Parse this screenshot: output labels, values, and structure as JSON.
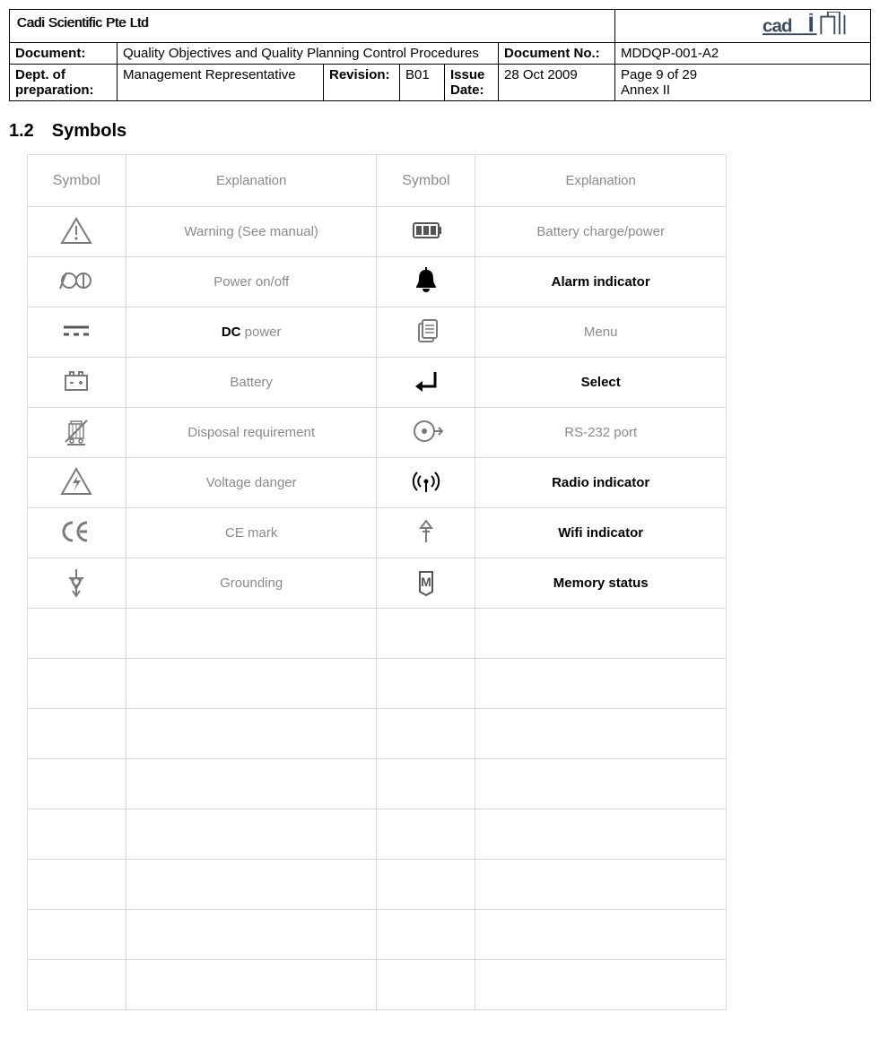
{
  "header": {
    "company": "Cadi Scientific Pte Ltd",
    "doc_lbl": "Document:",
    "doc_val": "Quality Objectives and Quality Planning Control Procedures",
    "docno_lbl": "Document No.:",
    "docno_val": "MDDQP-001-A2",
    "dept_lbl": "Dept. of preparation:",
    "dept_val": "Management Representative",
    "rev_lbl": "Revision:",
    "rev_val": "B01",
    "issue_lbl": "Issue Date:",
    "issue_val": "28 Oct 2009",
    "page_line1": "Page 9 of 29",
    "page_line2": "Annex II"
  },
  "section_title": "1.2 Symbols",
  "symtable": {
    "header": {
      "sym": "Symbol",
      "exp": "Explanation"
    },
    "rows": [
      {
        "l_icon": "warning",
        "l_text": "Warning (See manual)",
        "l_bold": false,
        "r_icon": "battery3",
        "r_text": "Battery charge/power",
        "r_bold": false
      },
      {
        "l_icon": "poweroo",
        "l_text": "Power on/off",
        "l_bold": false,
        "r_icon": "bell",
        "r_text": "Alarm indicator",
        "r_bold": true
      },
      {
        "l_icon": "dcpower",
        "l_text": "__DCPOWER__",
        "l_bold": false,
        "r_icon": "menu",
        "r_text": "Menu",
        "r_bold": false
      },
      {
        "l_icon": "batt",
        "l_text": "Battery",
        "l_bold": false,
        "r_icon": "enter",
        "r_text": "Select",
        "r_bold": true
      },
      {
        "l_icon": "weee",
        "l_text": "Disposal requirement",
        "l_bold": false,
        "r_icon": "rs232",
        "r_text": "RS-232 port",
        "r_bold": false
      },
      {
        "l_icon": "hvolt",
        "l_text": "Voltage danger",
        "l_bold": false,
        "r_icon": "radio",
        "r_text": "Radio indicator",
        "r_bold": true
      },
      {
        "l_icon": "ce",
        "l_text": "CE mark",
        "l_bold": false,
        "r_icon": "wifi",
        "r_text": "Wifi indicator",
        "r_bold": true
      },
      {
        "l_icon": "ground",
        "l_text": "Grounding",
        "l_bold": false,
        "r_icon": "memory",
        "r_text": "Memory status",
        "r_bold": true
      }
    ],
    "empty_rows": 8,
    "colors": {
      "border": "#d7d7d7",
      "muted_text": "#8a8a8a",
      "bold_text": "#000000",
      "icon_stroke": "#7a7a7a"
    }
  }
}
